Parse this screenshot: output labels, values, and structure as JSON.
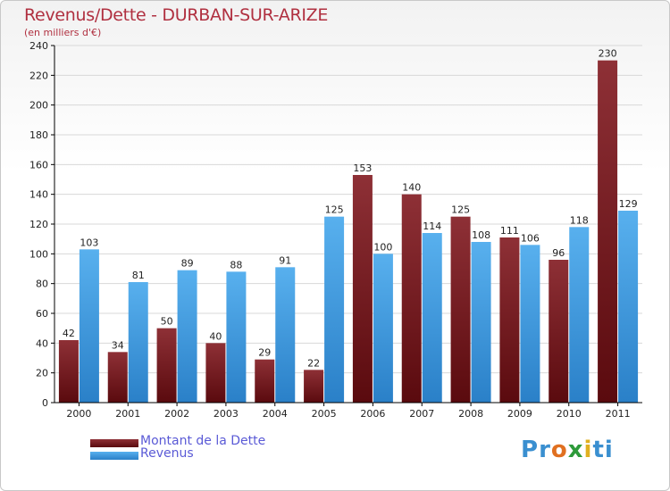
{
  "title": "Revenus/Dette - DURBAN-SUR-ARIZE",
  "subtitle": "(en milliers d'€)",
  "legend": [
    {
      "label": "Montant de la Dette",
      "color": "#7a1a1e"
    },
    {
      "label": "Revenus",
      "color": "#3a9ae0"
    }
  ],
  "logo": {
    "text": "Proxiti",
    "letters": [
      "P",
      "r",
      "o",
      "x",
      "i",
      "t",
      "i"
    ],
    "colors": [
      "#3a8fd0",
      "#3a8fd0",
      "#e07020",
      "#2d9a3a",
      "#e0b020",
      "#3a8fd0",
      "#3a8fd0"
    ]
  },
  "chart_data": {
    "type": "bar",
    "categories": [
      "2000",
      "2001",
      "2002",
      "2003",
      "2004",
      "2005",
      "2006",
      "2007",
      "2008",
      "2009",
      "2010",
      "2011"
    ],
    "series": [
      {
        "name": "Montant de la Dette",
        "values": [
          42,
          34,
          50,
          40,
          29,
          22,
          153,
          140,
          125,
          111,
          96,
          230
        ],
        "color": "#7a1a1e"
      },
      {
        "name": "Revenus",
        "values": [
          103,
          81,
          89,
          88,
          91,
          125,
          100,
          114,
          108,
          106,
          118,
          129
        ],
        "color": "#3a9ae0"
      }
    ],
    "ylim": [
      0,
      240
    ],
    "yticks": [
      0,
      20,
      40,
      60,
      80,
      100,
      120,
      140,
      160,
      180,
      200,
      220,
      240
    ],
    "grid": true,
    "legend_position": "bottom-left"
  }
}
